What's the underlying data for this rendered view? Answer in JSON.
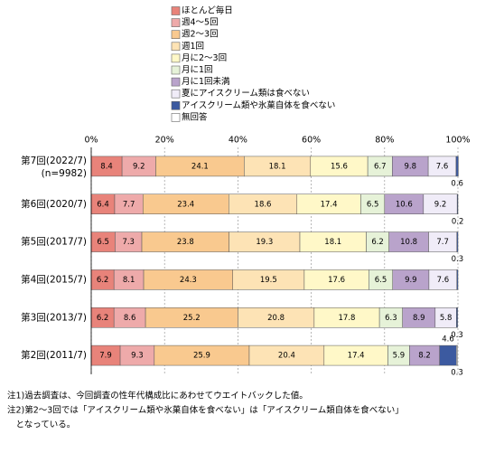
{
  "chart_data": {
    "type": "stacked-bar-horizontal",
    "categories": [
      "第7回(2022/7)",
      "第6回(2020/7)",
      "第5回(2017/7)",
      "第4回(2015/7)",
      "第3回(2013/7)",
      "第2回(2011/7)"
    ],
    "n_label": "(n=9982)",
    "series": [
      {
        "name": "ほとんど毎日",
        "color": "#e8837a",
        "values": [
          8.4,
          6.4,
          6.5,
          6.2,
          6.2,
          7.9
        ]
      },
      {
        "name": "週4～5回",
        "color": "#eeaaaa",
        "values": [
          9.2,
          7.7,
          7.3,
          8.1,
          8.6,
          9.3
        ]
      },
      {
        "name": "週2～3回",
        "color": "#f9c98f",
        "values": [
          24.1,
          23.4,
          23.8,
          24.3,
          25.2,
          25.9
        ]
      },
      {
        "name": "週1回",
        "color": "#fde3b5",
        "values": [
          18.1,
          18.6,
          19.3,
          19.5,
          20.8,
          20.4
        ]
      },
      {
        "name": "月に2～3回",
        "color": "#fff8c8",
        "values": [
          15.6,
          17.4,
          18.1,
          17.6,
          17.8,
          17.4
        ]
      },
      {
        "name": "月に1回",
        "color": "#e6f2d8",
        "values": [
          6.7,
          6.5,
          6.2,
          6.5,
          6.3,
          5.9
        ]
      },
      {
        "name": "月に1回未満",
        "color": "#b9a3cb",
        "values": [
          9.8,
          10.6,
          10.8,
          9.9,
          8.9,
          8.2
        ]
      },
      {
        "name": "夏にアイスクリーム類は食べない",
        "color": "#f0ecf8",
        "values": [
          7.6,
          9.2,
          7.7,
          7.6,
          5.8,
          null
        ]
      },
      {
        "name": "アイスクリーム類や氷菓自体を食べない",
        "color": "#3c5aa0",
        "values": [
          0.6,
          0.2,
          0.3,
          0.3,
          0.3,
          4.6
        ],
        "value_labels": [
          "0.6",
          "0.2",
          "0.3",
          null,
          "0.3",
          "4.6"
        ]
      },
      {
        "name": "無回答",
        "color": "#ffffff",
        "values": [
          null,
          null,
          null,
          null,
          null,
          0.3
        ]
      }
    ],
    "xlim": [
      0,
      100
    ],
    "xticks": [
      {
        "value": 0,
        "label": "0%"
      },
      {
        "value": 20,
        "label": "20%"
      },
      {
        "value": 40,
        "label": "40%"
      },
      {
        "value": 60,
        "label": "60%"
      },
      {
        "value": 80,
        "label": "80%"
      },
      {
        "value": 100,
        "label": "100%"
      }
    ],
    "grid": true,
    "notes": [
      "注1)過去調査は、今回調査の性年代構成比にあわせてウエイトバックした値。",
      "注2)第2～3回では「アイスクリーム類や氷菓自体を食べない」は「アイスクリーム類自体を食べない」",
      "　となっている。"
    ]
  }
}
